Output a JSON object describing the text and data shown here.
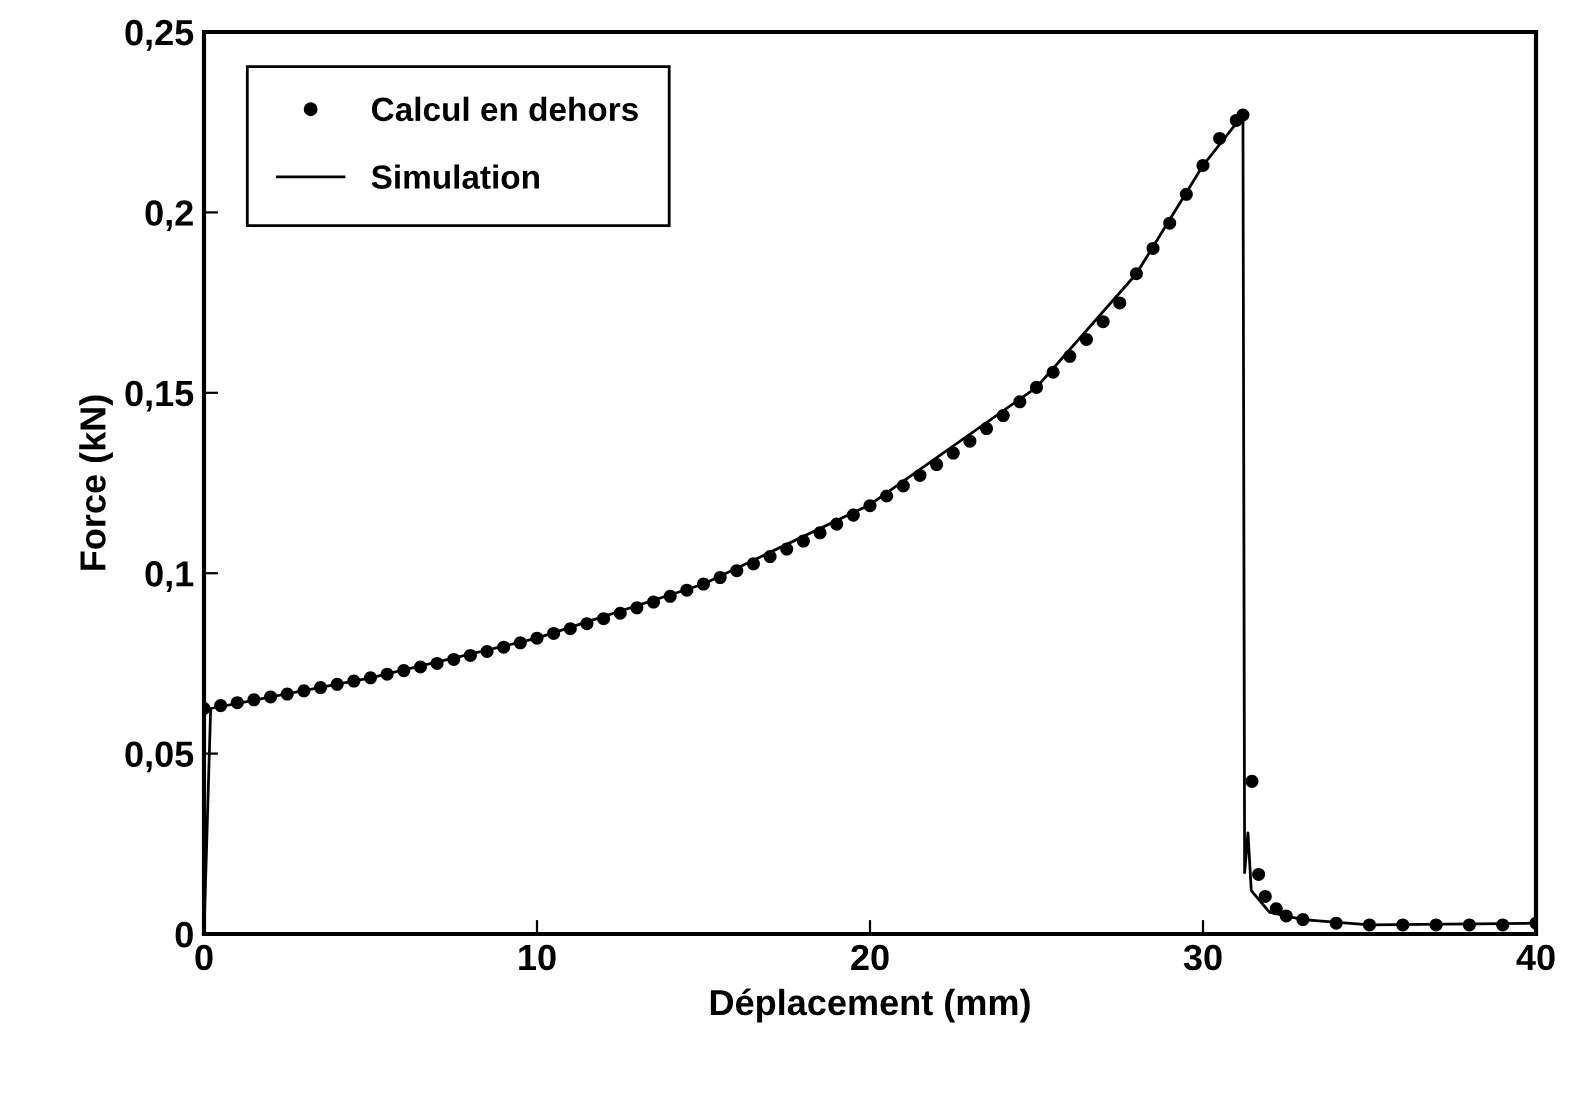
{
  "chart_data": {
    "type": "scatter",
    "xlabel": "Déplacement (mm)",
    "ylabel": "Force (kN)",
    "xlim": [
      0,
      40
    ],
    "xticks": [
      0,
      10,
      20,
      30,
      40
    ],
    "ylim": [
      0,
      0.25
    ],
    "yticks": [
      0,
      {
        "value": 0.05,
        "label": "0,05"
      },
      {
        "value": 0.1,
        "label": "0,1"
      },
      {
        "value": 0.15,
        "label": "0,15"
      },
      {
        "value": 0.2,
        "label": "0,2"
      },
      {
        "value": 0.25,
        "label": "0,25"
      }
    ],
    "grid": false,
    "legend": "top left",
    "series": [
      {
        "name": "Calcul en dehors",
        "marker": "circle",
        "color": "#000000",
        "x": [
          0,
          0.5,
          1,
          1.5,
          2,
          2.5,
          3,
          3.5,
          4,
          4.5,
          5,
          5.5,
          6,
          6.5,
          7,
          7.5,
          8,
          8.5,
          9,
          9.5,
          10,
          10.5,
          11,
          11.5,
          12,
          12.5,
          13,
          13.5,
          14,
          14.5,
          15,
          15.5,
          16,
          16.5,
          17,
          17.5,
          18,
          18.5,
          19,
          19.5,
          20,
          20.5,
          21,
          21.5,
          22,
          22.5,
          23,
          23.5,
          24,
          24.5,
          25,
          25.5,
          26,
          26.5,
          27,
          27.5,
          28,
          28.5,
          29,
          29.5,
          30,
          30.5,
          31,
          31.2,
          31.47,
          31.67,
          31.87,
          32.2,
          32.5,
          33,
          34,
          35,
          36,
          37,
          38,
          39,
          40
        ],
        "values": [
          0.0625,
          0.0633,
          0.0641,
          0.0649,
          0.0657,
          0.0665,
          0.0674,
          0.0683,
          0.0692,
          0.0701,
          0.071,
          0.072,
          0.073,
          0.074,
          0.075,
          0.0761,
          0.0772,
          0.0783,
          0.0795,
          0.0807,
          0.082,
          0.0833,
          0.0846,
          0.086,
          0.0874,
          0.0889,
          0.0904,
          0.092,
          0.0936,
          0.0953,
          0.097,
          0.0988,
          0.1007,
          0.1026,
          0.1046,
          0.1067,
          0.1089,
          0.1112,
          0.1136,
          0.1161,
          0.1187,
          0.1214,
          0.1242,
          0.1271,
          0.1301,
          0.1333,
          0.1366,
          0.1401,
          0.1437,
          0.1475,
          0.1515,
          0.1557,
          0.1601,
          0.1648,
          0.1697,
          0.1749,
          0.183,
          0.19,
          0.197,
          0.205,
          0.213,
          0.2205,
          0.2255,
          0.227,
          0.0423,
          0.0165,
          0.0104,
          0.007,
          0.005,
          0.004,
          0.003,
          0.0025,
          0.0025,
          0.0025,
          0.0025,
          0.0025,
          0.003
        ]
      },
      {
        "name": "Simulation",
        "type": "line",
        "marker": "none",
        "line_style": "solid",
        "color": "#000000",
        "x": [
          0,
          0.2,
          5,
          10,
          15,
          20,
          25,
          28,
          30,
          31.2,
          31.25,
          31.35,
          31.45,
          32,
          33,
          35,
          40
        ],
        "values": [
          0,
          0.0625,
          0.071,
          0.082,
          0.097,
          0.119,
          0.1515,
          0.183,
          0.213,
          0.227,
          0.017,
          0.028,
          0.012,
          0.006,
          0.004,
          0.0025,
          0.003
        ]
      }
    ]
  }
}
